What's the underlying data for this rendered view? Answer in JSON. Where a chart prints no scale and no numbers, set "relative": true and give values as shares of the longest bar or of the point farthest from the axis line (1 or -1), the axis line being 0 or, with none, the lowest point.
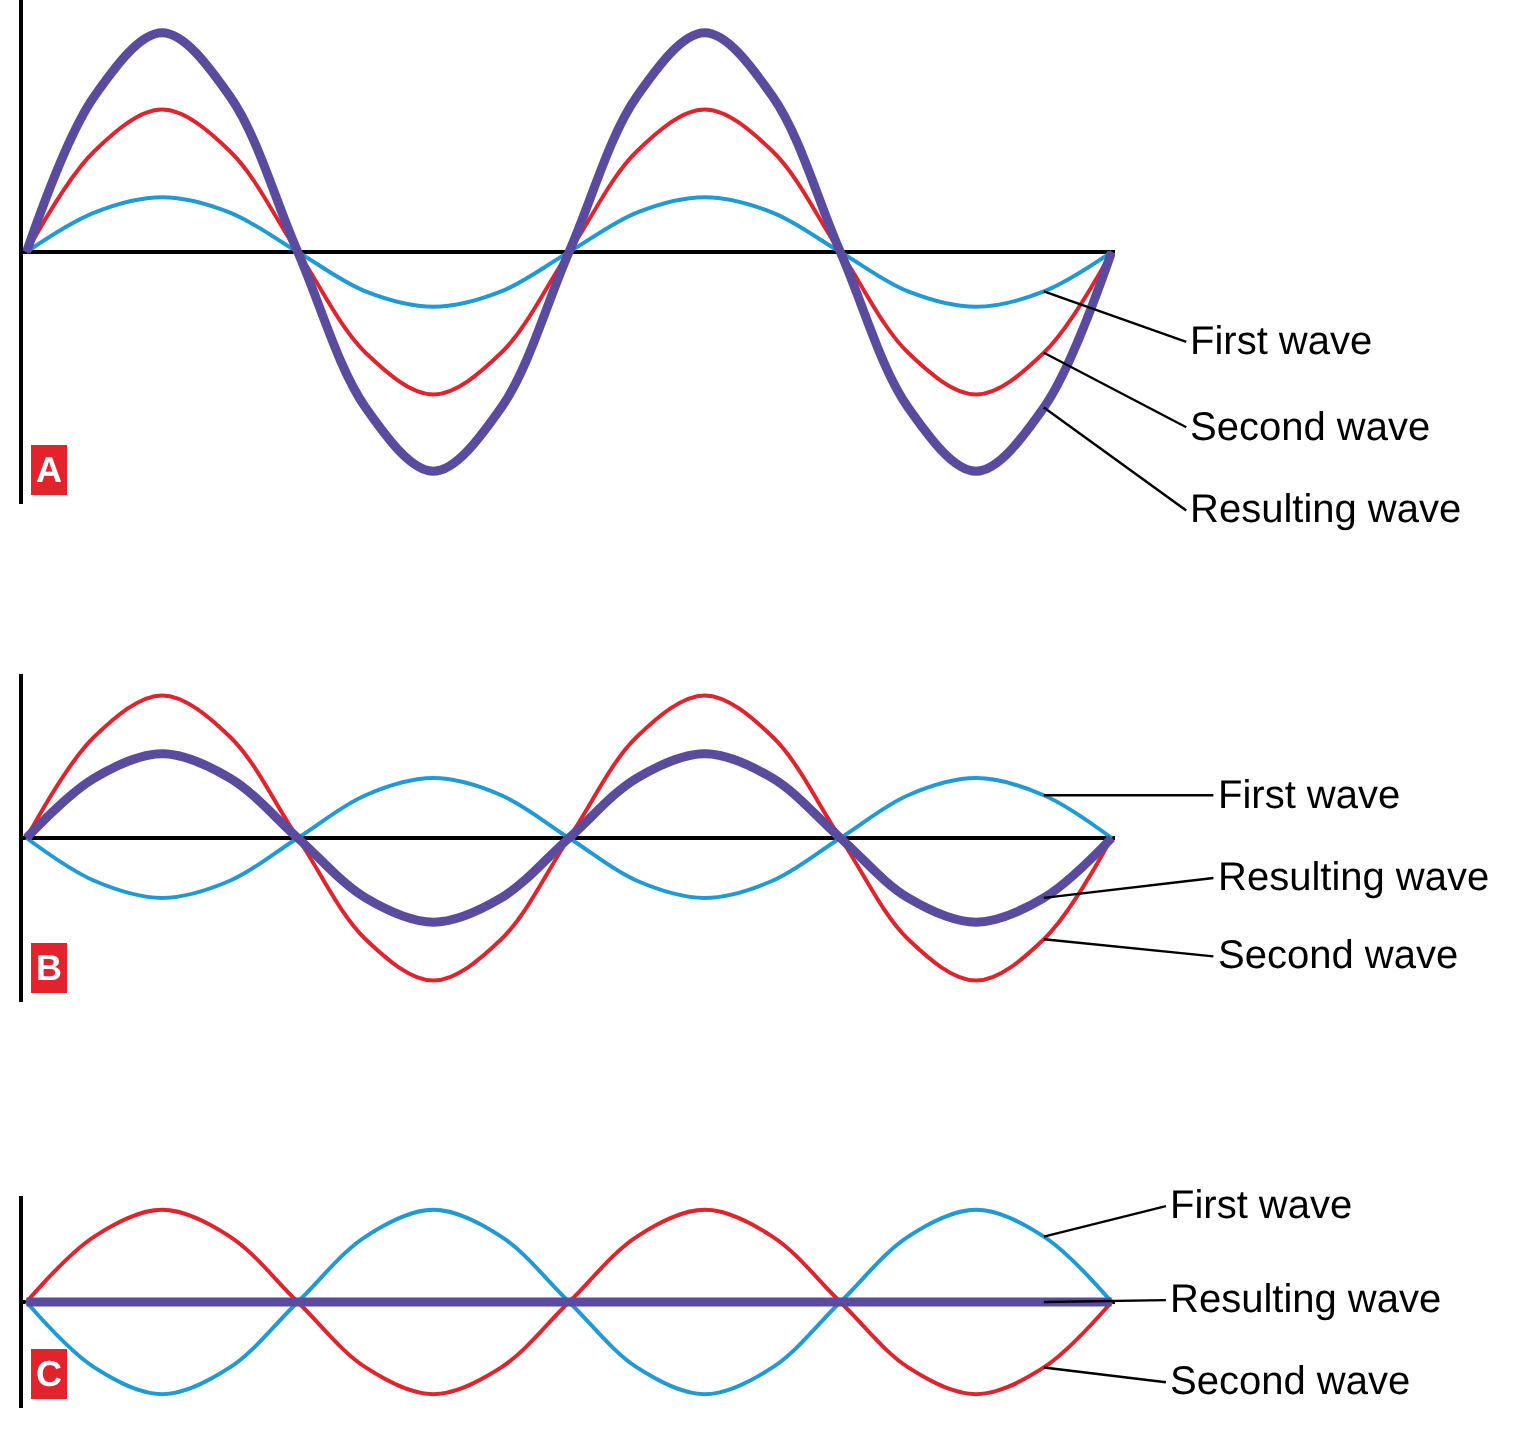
{
  "chart_data": [
    {
      "type": "line",
      "relative": true,
      "legend": false,
      "marker": "none",
      "line_style": "solid",
      "annotations": [
        "A"
      ],
      "categories": [
        null,
        null,
        null,
        null,
        null,
        null,
        null,
        null,
        null,
        null,
        null,
        null,
        null,
        null,
        null,
        null,
        null
      ],
      "series": [
        {
          "name": "First wave",
          "color": "#1e9bd7",
          "values": [
            0,
            0.18,
            0.25,
            0.18,
            0,
            -0.18,
            -0.25,
            -0.18,
            0,
            0.18,
            0.25,
            0.18,
            0,
            -0.18,
            -0.25,
            -0.18,
            0
          ]
        },
        {
          "name": "Second wave",
          "color": "#e3232c",
          "values": [
            0,
            0.46,
            0.65,
            0.46,
            0,
            -0.46,
            -0.65,
            -0.46,
            0,
            0.46,
            0.65,
            0.46,
            0,
            -0.46,
            -0.65,
            -0.46,
            0
          ]
        },
        {
          "name": "Resulting wave",
          "color": "#5a4b9f",
          "values": [
            0,
            0.71,
            1,
            0.71,
            0,
            -0.71,
            -1,
            -0.71,
            0,
            0.71,
            1,
            0.71,
            0,
            -0.71,
            -1,
            -0.71,
            0
          ]
        }
      ]
    },
    {
      "type": "line",
      "relative": true,
      "legend": false,
      "marker": "none",
      "line_style": "solid",
      "annotations": [
        "B"
      ],
      "categories": [
        null,
        null,
        null,
        null,
        null,
        null,
        null,
        null,
        null,
        null,
        null,
        null,
        null,
        null,
        null,
        null,
        null
      ],
      "series": [
        {
          "name": "First wave",
          "color": "#1e9bd7",
          "values": [
            0,
            -0.3,
            -0.42,
            -0.3,
            0,
            0.3,
            0.42,
            0.3,
            0,
            -0.3,
            -0.42,
            -0.3,
            0,
            0.3,
            0.42,
            0.3,
            0
          ]
        },
        {
          "name": "Second wave",
          "color": "#e3232c",
          "values": [
            0,
            0.71,
            1,
            0.71,
            0,
            -0.71,
            -1,
            -0.71,
            0,
            0.71,
            1,
            0.71,
            0,
            -0.71,
            -1,
            -0.71,
            0
          ]
        },
        {
          "name": "Resulting wave",
          "color": "#5a4b9f",
          "values": [
            0,
            0.42,
            0.59,
            0.42,
            0,
            -0.42,
            -0.59,
            -0.42,
            0,
            0.42,
            0.59,
            0.42,
            0,
            -0.42,
            -0.59,
            -0.42,
            0
          ]
        }
      ]
    },
    {
      "type": "line",
      "relative": true,
      "legend": false,
      "marker": "none",
      "line_style": "solid",
      "annotations": [
        "C"
      ],
      "categories": [
        null,
        null,
        null,
        null,
        null,
        null,
        null,
        null,
        null,
        null,
        null,
        null,
        null,
        null,
        null,
        null,
        null
      ],
      "series": [
        {
          "name": "First wave",
          "color": "#1e9bd7",
          "values": [
            0,
            -0.71,
            -1,
            -0.71,
            0,
            0.71,
            1,
            0.71,
            0,
            -0.71,
            -1,
            -0.71,
            0,
            0.71,
            1,
            0.71,
            0
          ]
        },
        {
          "name": "Second wave",
          "color": "#e3232c",
          "values": [
            0,
            0.71,
            1,
            0.71,
            0,
            -0.71,
            -1,
            -0.71,
            0,
            0.71,
            1,
            0.71,
            0,
            -0.71,
            -1,
            -0.71,
            0
          ]
        },
        {
          "name": "Resulting wave",
          "color": "#5a4b9f",
          "values": [
            0,
            0,
            0,
            0,
            0,
            0,
            0,
            0,
            0,
            0,
            0,
            0,
            0,
            0,
            0,
            0,
            0
          ]
        }
      ]
    }
  ]
}
